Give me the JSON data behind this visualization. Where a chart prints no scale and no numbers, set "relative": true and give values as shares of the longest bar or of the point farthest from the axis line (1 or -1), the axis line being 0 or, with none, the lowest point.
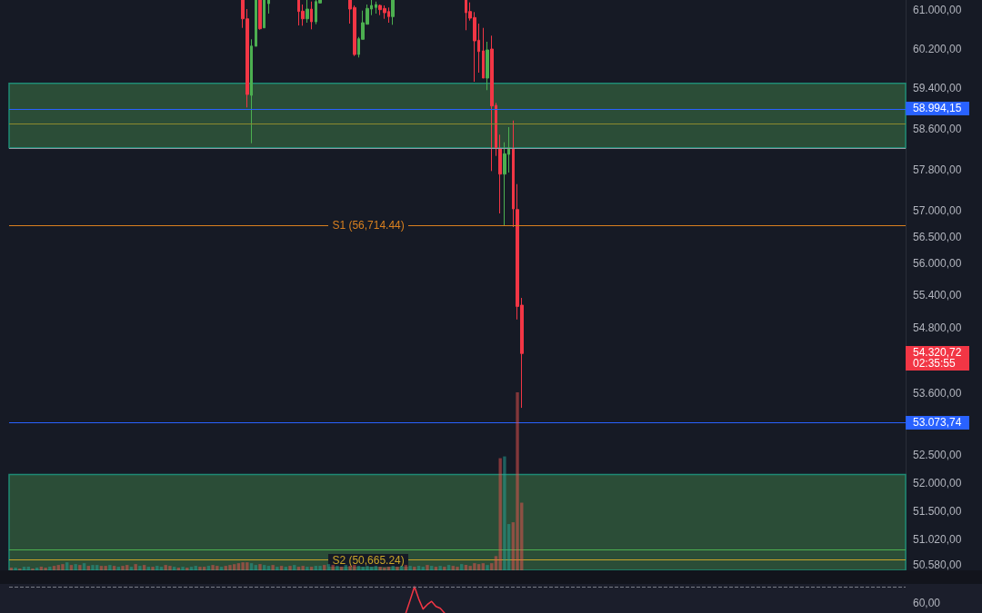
{
  "chart_data": [
    {
      "type": "candlestick",
      "tick_labels": "y",
      "log": true,
      "categories": [
        null,
        null,
        null,
        null,
        null,
        null,
        null,
        null,
        null,
        null,
        null,
        null,
        null,
        null,
        null,
        null,
        null,
        null,
        null,
        null,
        null,
        null,
        null,
        null,
        null,
        null,
        null,
        null,
        null,
        null,
        null,
        null,
        null,
        null,
        null,
        null,
        null,
        null,
        null,
        null,
        null,
        null,
        null,
        null,
        null,
        null,
        null,
        null,
        null,
        null,
        null,
        null,
        null,
        null,
        null,
        null,
        null,
        null,
        null,
        null,
        null,
        null,
        null,
        null,
        null,
        null,
        null,
        null,
        null,
        null,
        null,
        null,
        null,
        null,
        null,
        null,
        null,
        null,
        null,
        null,
        null,
        null,
        null,
        null,
        null,
        null,
        null,
        null,
        null,
        null,
        null,
        null,
        null,
        null,
        null,
        null,
        null,
        null,
        null,
        null,
        null,
        null,
        null,
        null,
        null,
        null,
        null,
        null,
        null,
        null,
        null,
        null,
        null,
        null,
        null,
        null,
        null,
        null,
        null,
        null,
        null,
        null,
        null,
        null,
        null,
        null,
        null,
        null,
        null,
        null,
        null,
        null,
        null,
        null,
        null,
        null,
        null,
        null,
        null,
        null,
        null,
        null,
        null,
        null,
        null,
        null,
        null,
        null,
        null,
        null,
        null,
        null,
        null,
        null,
        null,
        null,
        null,
        null,
        null,
        null,
        null,
        null,
        null,
        null,
        null,
        null,
        null,
        null,
        null,
        null,
        null,
        null,
        null,
        null,
        null,
        null,
        null,
        null,
        null,
        null,
        null,
        null,
        null,
        null,
        null,
        null,
        null,
        null,
        null,
        null,
        null,
        null,
        null,
        null,
        null,
        null,
        null,
        null,
        null,
        null,
        null,
        null,
        null,
        null,
        null,
        null,
        null,
        null,
        null
      ],
      "ohlc": [
        null,
        null,
        null,
        null,
        null,
        null,
        null,
        null,
        null,
        null,
        null,
        null,
        null,
        null,
        null,
        null,
        null,
        null,
        null,
        null,
        null,
        null,
        null,
        null,
        null,
        null,
        null,
        null,
        null,
        null,
        null,
        null,
        null,
        null,
        null,
        null,
        null,
        null,
        null,
        null,
        null,
        null,
        null,
        null,
        null,
        null,
        null,
        null,
        null,
        null,
        null,
        null,
        null,
        null,
        [
          61200,
          61200,
          60627,
          60813
        ],
        [
          60813,
          61013,
          59022,
          59281
        ],
        [
          59263,
          60394,
          58314,
          60257
        ],
        [
          60252,
          61200,
          60252,
          61200
        ],
        [
          61200,
          61200,
          60590,
          60609
        ],
        [
          60627,
          61200,
          60627,
          61200
        ],
        [
          61125,
          61200,
          60920,
          61200
        ],
        null,
        null,
        null,
        null,
        null,
        null,
        [
          61200,
          61200,
          60677,
          60963
        ],
        [
          60970,
          61107,
          60671,
          60813
        ],
        [
          60813,
          61200,
          60733,
          61013
        ],
        [
          61013,
          61168,
          60597,
          60752
        ],
        [
          60752,
          61200,
          60702,
          61168
        ],
        [
          61138,
          61200,
          61138,
          61200
        ],
        null,
        null,
        null,
        null,
        null,
        null,
        [
          61200,
          61200,
          60714,
          61013
        ],
        [
          61045,
          61088,
          60054,
          60085
        ],
        [
          60085,
          60442,
          60025,
          60405
        ],
        [
          60394,
          60981,
          60394,
          60733
        ],
        [
          60702,
          61107,
          60702,
          61026
        ],
        [
          61013,
          61200,
          60888,
          61088
        ],
        [
          61045,
          61168,
          60920,
          61107
        ],
        [
          61088,
          61107,
          60888,
          61000
        ],
        [
          61026,
          61088,
          60813,
          60938
        ],
        [
          60963,
          61045,
          60733,
          60858
        ],
        [
          60858,
          61200,
          60690,
          61200
        ],
        null,
        null,
        null,
        null,
        null,
        null,
        null,
        null,
        null,
        null,
        null,
        null,
        null,
        null,
        null,
        null,
        [
          61200,
          61200,
          60579,
          60938
        ],
        [
          60963,
          61150,
          60776,
          60826
        ],
        [
          60839,
          60951,
          59536,
          60362
        ],
        [
          60375,
          60714,
          59718,
          60145
        ],
        [
          60159,
          60627,
          59609,
          59609
        ],
        [
          59609,
          60344,
          59367,
          60178
        ],
        [
          60196,
          60468,
          57769,
          59051
        ],
        [
          59064,
          59113,
          58064,
          58214
        ],
        [
          58214,
          58482,
          56949,
          57709
        ],
        [
          57709,
          58333,
          56718,
          58107
        ],
        [
          58094,
          58631,
          57739,
          58224
        ],
        [
          58214,
          58762,
          56688,
          57036
        ],
        [
          57024,
          57515,
          54948,
          55191
        ],
        [
          55214,
          55349,
          53334,
          54320.72
        ],
        null,
        null,
        null,
        null,
        null,
        null,
        null,
        null,
        null,
        null,
        null,
        null,
        null,
        null,
        null,
        null,
        null,
        null,
        null,
        null,
        null,
        null,
        null,
        null,
        null,
        null,
        null,
        null,
        null,
        null,
        null,
        null,
        null,
        null,
        null,
        null,
        null,
        null,
        null,
        null,
        null,
        null,
        null,
        null,
        null,
        null,
        null,
        null,
        null,
        null,
        null,
        null,
        null,
        null,
        null,
        null,
        null,
        null,
        null,
        null,
        null,
        null,
        null,
        null,
        null,
        null,
        null,
        null,
        null,
        null,
        null,
        null,
        null,
        null,
        null,
        null,
        null,
        null,
        null,
        null,
        null,
        null,
        null,
        null,
        null,
        null,
        null,
        null,
        null
      ],
      "colors": [
        null,
        null,
        null,
        null,
        null,
        null,
        null,
        null,
        null,
        null,
        null,
        null,
        null,
        null,
        null,
        null,
        null,
        null,
        null,
        null,
        null,
        null,
        null,
        null,
        null,
        null,
        null,
        null,
        null,
        null,
        null,
        null,
        null,
        null,
        null,
        null,
        null,
        null,
        null,
        null,
        null,
        null,
        null,
        null,
        null,
        null,
        null,
        null,
        null,
        null,
        null,
        null,
        null,
        null,
        "#f23645",
        "#f23645",
        "#4caf50",
        "#4caf50",
        "#f23645",
        "#4caf50",
        "#4caf50",
        null,
        null,
        null,
        null,
        null,
        null,
        "#f23645",
        "#f23645",
        "#4caf50",
        "#f23645",
        "#4caf50",
        "#4caf50",
        null,
        null,
        null,
        null,
        null,
        null,
        "#f23645",
        "#f23645",
        "#4caf50",
        "#4caf50",
        "#4caf50",
        "#4caf50",
        "#4caf50",
        "#f23645",
        "#f23645",
        "#f23645",
        "#4caf50",
        null,
        null,
        null,
        null,
        null,
        null,
        null,
        null,
        null,
        null,
        null,
        null,
        null,
        null,
        null,
        null,
        "#f23645",
        "#f23645",
        "#f23645",
        "#f23645",
        "#f23645",
        "#4caf50",
        "#f23645",
        "#f23645",
        "#f23645",
        "#4caf50",
        "#4caf50",
        "#f23645",
        "#f23645",
        "#f23645",
        null,
        null,
        null,
        null,
        null,
        null,
        null,
        null,
        null,
        null,
        null,
        null,
        null,
        null,
        null,
        null,
        null,
        null,
        null,
        null,
        null,
        null,
        null,
        null,
        null,
        null,
        null,
        null,
        null,
        null,
        null,
        null,
        null,
        null,
        null,
        null,
        null,
        null,
        null,
        null,
        null,
        null,
        null,
        null,
        null,
        null,
        null,
        null,
        null,
        null,
        null,
        null,
        null,
        null,
        null,
        null,
        null,
        null,
        null,
        null,
        null,
        null,
        null,
        null,
        null,
        null,
        null,
        null,
        null,
        null,
        null,
        null,
        null,
        null,
        null,
        null,
        null,
        null,
        null,
        null,
        null,
        null,
        null,
        null,
        null,
        null,
        null,
        null,
        null
      ],
      "value_labels": [
        null,
        null,
        null,
        null,
        null,
        null,
        null,
        null,
        null,
        null,
        null,
        null,
        null,
        null,
        null,
        null,
        null,
        null,
        null,
        null,
        null,
        null,
        null,
        null,
        null,
        null,
        null,
        null,
        null,
        null,
        null,
        null,
        null,
        null,
        null,
        null,
        null,
        null,
        null,
        null,
        null,
        null,
        null,
        null,
        null,
        null,
        null,
        null,
        null,
        null,
        null,
        null,
        null,
        null,
        null,
        null,
        null,
        null,
        null,
        null,
        null,
        null,
        null,
        null,
        null,
        null,
        null,
        null,
        null,
        null,
        null,
        null,
        null,
        null,
        null,
        null,
        null,
        null,
        null,
        null,
        null,
        null,
        null,
        null,
        null,
        null,
        null,
        null,
        null,
        null,
        null,
        null,
        null,
        null,
        null,
        null,
        null,
        null,
        null,
        null,
        null,
        null,
        null,
        null,
        null,
        null,
        null,
        null,
        null,
        null,
        null,
        null,
        null,
        null,
        null,
        null,
        null,
        null,
        null,
        "54.320,72",
        null,
        null,
        null,
        null,
        null,
        null,
        null,
        null,
        null,
        null,
        null,
        null,
        null,
        null,
        null,
        null,
        null,
        null,
        null,
        null,
        null,
        null,
        null,
        null,
        null,
        null,
        null,
        null,
        null,
        null,
        null,
        null,
        null,
        null,
        null,
        null,
        null,
        null,
        null,
        null,
        null,
        null,
        null,
        null,
        null,
        null,
        null,
        null,
        null,
        null,
        null,
        null,
        null,
        null,
        null,
        null,
        null,
        null,
        null,
        null,
        null,
        null,
        null,
        null,
        null,
        null,
        null,
        null,
        null,
        null,
        null,
        null,
        null,
        null,
        null,
        null,
        null,
        null,
        null,
        null,
        null,
        null,
        null,
        null,
        null,
        null,
        null,
        null,
        null
      ],
      "ylim": [
        50490,
        61200
      ],
      "yticks": [
        {
          "value": 61000,
          "label": "61.000,00"
        },
        {
          "value": 60200,
          "label": "60.200,00"
        },
        {
          "value": 59400,
          "label": "59.400,00"
        },
        {
          "value": 58600,
          "label": "58.600,00"
        },
        {
          "value": 57800,
          "label": "57.800,00"
        },
        {
          "value": 57000,
          "label": "57.000,00"
        },
        {
          "value": 56500,
          "label": "56.500,00"
        },
        {
          "value": 56000,
          "label": "56.000,00"
        },
        {
          "value": 55400,
          "label": "55.400,00"
        },
        {
          "value": 54800,
          "label": "54.800,00"
        },
        {
          "value": 53600,
          "label": "53.600,00"
        },
        {
          "value": 52500,
          "label": "52.500,00"
        },
        {
          "value": 52000,
          "label": "52.000,00"
        },
        {
          "value": 51500,
          "label": "51.500,00"
        },
        {
          "value": 51020,
          "label": "51.020,00"
        },
        {
          "value": 50580,
          "label": "50.580,00"
        }
      ],
      "bands": [
        {
          "axis": "y",
          "from": 58225,
          "to": 59505,
          "color": "#2b4d37"
        },
        {
          "axis": "y",
          "from": 50490,
          "to": 52150,
          "color": "#2b4d37"
        }
      ],
      "ref_lines": [
        {
          "axis": "y",
          "value": 58994.15,
          "label": "58.994,15",
          "color": "#2962ff"
        },
        {
          "axis": "y",
          "value": 53073.74,
          "label": "53.073,74",
          "color": "#2962ff"
        },
        {
          "axis": "y",
          "value": 56714.44,
          "color": "#d9801f"
        },
        {
          "axis": "y",
          "value": 50665.24,
          "color": "#c8a52a"
        },
        {
          "axis": "y",
          "value": 58690,
          "color": "#8c8a2e"
        },
        {
          "axis": "y",
          "value": 58210,
          "color": "#9598a1"
        },
        {
          "axis": "y",
          "value": 50845,
          "color": "#4caf50"
        }
      ],
      "annotations": [
        {
          "text": "S1 (56,714.44)",
          "y": 56714.44
        },
        {
          "text": "S2 (50,665.24)",
          "y": 50665.24
        },
        "02:35:55"
      ]
    },
    {
      "type": "bar",
      "relative": true,
      "tick_labels": false,
      "categories": [
        null,
        null,
        null,
        null,
        null,
        null,
        null,
        null,
        null,
        null,
        null,
        null,
        null,
        null,
        null,
        null,
        null,
        null,
        null,
        null,
        null,
        null,
        null,
        null,
        null,
        null,
        null,
        null,
        null,
        null,
        null,
        null,
        null,
        null,
        null,
        null,
        null,
        null,
        null,
        null,
        null,
        null,
        null,
        null,
        null,
        null,
        null,
        null,
        null,
        null,
        null,
        null,
        null,
        null,
        null,
        null,
        null,
        null,
        null,
        null,
        null,
        null,
        null,
        null,
        null,
        null,
        null,
        null,
        null,
        null,
        null,
        null,
        null,
        null,
        null,
        null,
        null,
        null,
        null,
        null,
        null,
        null,
        null,
        null,
        null,
        null,
        null,
        null,
        null,
        null,
        null,
        null,
        null,
        null,
        null,
        null,
        null,
        null,
        null,
        null,
        null,
        null,
        null,
        null,
        null,
        null,
        null,
        null,
        null,
        null,
        null,
        null,
        null,
        null,
        null,
        null,
        null,
        null,
        null,
        null,
        null,
        null,
        null,
        null,
        null,
        null,
        null,
        null,
        null,
        null,
        null,
        null,
        null,
        null,
        null,
        null,
        null,
        null,
        null,
        null,
        null,
        null,
        null,
        null,
        null,
        null,
        null,
        null,
        null,
        null,
        null,
        null,
        null,
        null,
        null,
        null,
        null,
        null,
        null,
        null,
        null,
        null,
        null,
        null,
        null,
        null,
        null,
        null,
        null,
        null,
        null,
        null,
        null,
        null,
        null,
        null,
        null,
        null,
        null,
        null,
        null,
        null,
        null,
        null,
        null,
        null,
        null,
        null,
        null,
        null,
        null,
        null,
        null,
        null,
        null,
        null,
        null,
        null,
        null,
        null,
        null,
        null,
        null,
        null,
        null,
        null,
        null,
        null,
        null
      ],
      "values": [
        0.015,
        0.015,
        0.01,
        0.02,
        0.02,
        0.01,
        0.015,
        0.02,
        0.015,
        0.02,
        0.025,
        0.03,
        0.035,
        0.045,
        0.03,
        0.035,
        0.03,
        0.04,
        0.025,
        0.03,
        0.03,
        0.025,
        0.025,
        0.03,
        0.025,
        0.02,
        0.025,
        0.03,
        0.02,
        0.035,
        0.025,
        0.03,
        0.02,
        0.02,
        0.025,
        0.02,
        0.03,
        0.025,
        0.02,
        0.015,
        0.02,
        0.015,
        0.02,
        0.025,
        0.02,
        0.02,
        0.025,
        0.03,
        0.025,
        0.02,
        0.025,
        0.03,
        0.035,
        0.04,
        0.045,
        0.045,
        0.04,
        0.03,
        0.035,
        0.03,
        0.025,
        0.03,
        0.02,
        0.025,
        0.02,
        0.025,
        0.03,
        0.02,
        0.025,
        0.02,
        0.02,
        0.025,
        0.025,
        0.03,
        0.035,
        0.03,
        0.025,
        0.02,
        0.03,
        0.025,
        0.03,
        0.025,
        0.02,
        0.025,
        0.02,
        0.025,
        0.02,
        0.015,
        0.02,
        0.025,
        0.02,
        0.025,
        0.03,
        0.025,
        0.02,
        0.025,
        0.02,
        0.03,
        0.025,
        0.02,
        0.025,
        0.02,
        0.03,
        0.025,
        0.02,
        0.035,
        0.03,
        0.025,
        0.04,
        0.035,
        0.04,
        0.03,
        0.04,
        0.08,
        0.63,
        0.64,
        0.26,
        0.27,
        1,
        0.38,
        null,
        null,
        null,
        null,
        null,
        null,
        null,
        null,
        null,
        null,
        null,
        null,
        null,
        null,
        null,
        null,
        null,
        null,
        null,
        null,
        null,
        null,
        null,
        null,
        null,
        null,
        null,
        null,
        null,
        null,
        null,
        null,
        null,
        null,
        null,
        null,
        null,
        null,
        null,
        null,
        null,
        null,
        null,
        null,
        null,
        null,
        null,
        null,
        null,
        null,
        null,
        null,
        null,
        null,
        null,
        null,
        null,
        null,
        null,
        null,
        null,
        null,
        null,
        null,
        null,
        null,
        null,
        null,
        null,
        null,
        null,
        null,
        null,
        null,
        null,
        null,
        null,
        null,
        null,
        null,
        null,
        null,
        null,
        null,
        null,
        null,
        null,
        null,
        null
      ],
      "colors": [
        "#ef5350",
        "#26a69a",
        "#ef5350",
        "#26a69a",
        "#26a69a",
        "#ef5350",
        "#26a69a",
        "#ef5350",
        "#ef5350",
        "#26a69a",
        "#ef5350",
        "#ef5350",
        "#ef5350",
        "#26a69a",
        "#ef5350",
        "#26a69a",
        "#ef5350",
        "#26a69a",
        "#ef5350",
        "#26a69a",
        "#26a69a",
        "#ef5350",
        "#ef5350",
        "#26a69a",
        "#ef5350",
        "#26a69a",
        "#ef5350",
        "#ef5350",
        "#26a69a",
        "#ef5350",
        "#26a69a",
        "#ef5350",
        "#26a69a",
        "#ef5350",
        "#26a69a",
        "#26a69a",
        "#ef5350",
        "#ef5350",
        "#26a69a",
        "#ef5350",
        "#26a69a",
        "#ef5350",
        "#26a69a",
        "#26a69a",
        "#ef5350",
        "#ef5350",
        "#26a69a",
        "#ef5350",
        "#ef5350",
        "#26a69a",
        "#ef5350",
        "#ef5350",
        "#ef5350",
        "#ef5350",
        "#ef5350",
        "#ef5350",
        "#26a69a",
        "#26a69a",
        "#ef5350",
        "#26a69a",
        "#26a69a",
        "#ef5350",
        "#26a69a",
        "#ef5350",
        "#26a69a",
        "#ef5350",
        "#26a69a",
        "#ef5350",
        "#ef5350",
        "#26a69a",
        "#ef5350",
        "#26a69a",
        "#26a69a",
        "#ef5350",
        "#26a69a",
        "#ef5350",
        "#26a69a",
        "#ef5350",
        "#26a69a",
        "#ef5350",
        "#ef5350",
        "#26a69a",
        "#26a69a",
        "#26a69a",
        "#26a69a",
        "#26a69a",
        "#ef5350",
        "#ef5350",
        "#ef5350",
        "#26a69a",
        "#ef5350",
        "#26a69a",
        "#ef5350",
        "#26a69a",
        "#ef5350",
        "#26a69a",
        "#26a69a",
        "#ef5350",
        "#26a69a",
        "#ef5350",
        "#26a69a",
        "#ef5350",
        "#26a69a",
        "#ef5350",
        "#ef5350",
        "#26a69a",
        "#ef5350",
        "#ef5350",
        "#ef5350",
        "#ef5350",
        "#ef5350",
        "#26a69a",
        "#ef5350",
        "#ef5350",
        "#ef5350",
        "#26a69a",
        "#26a69a",
        "#ef5350",
        "#ef5350",
        "#ef5350",
        null,
        null,
        null,
        null,
        null,
        null,
        null,
        null,
        null,
        null,
        null,
        null,
        null,
        null,
        null,
        null,
        null,
        null,
        null,
        null,
        null,
        null,
        null,
        null,
        null,
        null,
        null,
        null,
        null,
        null,
        null,
        null,
        null,
        null,
        null,
        null,
        null,
        null,
        null,
        null,
        null,
        null,
        null,
        null,
        null,
        null,
        null,
        null,
        null,
        null,
        null,
        null,
        null,
        null,
        null,
        null,
        null,
        null,
        null,
        null,
        null,
        null,
        null,
        null,
        null,
        null,
        null,
        null,
        null,
        null,
        null,
        null,
        null,
        null,
        null,
        null,
        null,
        null,
        null,
        null,
        null,
        null,
        null,
        null,
        null,
        null,
        null,
        null,
        null
      ]
    },
    {
      "type": "line",
      "relative": true,
      "tick_labels": false,
      "marker": "none",
      "color": "#f23645",
      "categories": [
        null,
        null,
        null,
        null,
        null,
        null,
        null,
        null,
        null,
        null,
        null,
        null,
        null,
        null,
        null,
        null,
        null,
        null,
        null,
        null,
        null,
        null,
        null,
        null,
        null,
        null,
        null,
        null,
        null,
        null,
        null,
        null,
        null,
        null,
        null,
        null,
        null,
        null,
        null,
        null,
        null,
        null,
        null,
        null,
        null,
        null,
        null,
        null,
        null,
        null,
        null,
        null,
        null,
        null,
        null,
        null,
        null,
        null,
        null,
        null,
        null,
        null,
        null,
        null,
        null,
        null,
        null,
        null,
        null,
        null,
        null,
        null,
        null,
        null,
        null,
        null,
        null,
        null,
        null,
        null,
        null,
        null,
        null,
        null,
        null,
        null,
        null,
        null,
        null,
        null,
        null,
        null,
        null,
        null,
        null,
        null,
        null,
        null,
        null,
        null,
        null,
        null,
        null,
        null,
        null,
        null,
        null,
        null,
        null,
        null,
        null,
        null,
        null,
        null,
        null,
        null,
        null,
        null,
        null,
        null,
        null,
        null,
        null,
        null,
        null,
        null,
        null,
        null,
        null,
        null,
        null,
        null,
        null,
        null,
        null,
        null,
        null,
        null,
        null,
        null,
        null,
        null,
        null,
        null,
        null,
        null,
        null,
        null,
        null,
        null,
        null,
        null,
        null,
        null,
        null,
        null,
        null,
        null,
        null,
        null,
        null,
        null,
        null,
        null,
        null,
        null,
        null,
        null,
        null,
        null,
        null,
        null,
        null,
        null,
        null,
        null,
        null,
        null,
        null,
        null,
        null,
        null,
        null,
        null,
        null,
        null,
        null,
        null,
        null,
        null,
        null,
        null,
        null,
        null,
        null,
        null,
        null,
        null,
        null,
        null,
        null,
        null,
        null,
        null,
        null,
        null,
        null,
        null,
        null
      ],
      "values": [
        null,
        null,
        null,
        null,
        null,
        null,
        null,
        null,
        null,
        null,
        null,
        null,
        null,
        null,
        null,
        null,
        null,
        null,
        null,
        null,
        null,
        null,
        null,
        null,
        null,
        null,
        null,
        null,
        null,
        null,
        null,
        null,
        null,
        null,
        null,
        null,
        null,
        null,
        null,
        null,
        null,
        null,
        null,
        null,
        null,
        null,
        null,
        null,
        null,
        null,
        null,
        null,
        null,
        null,
        null,
        null,
        null,
        null,
        null,
        null,
        null,
        null,
        null,
        null,
        null,
        null,
        null,
        null,
        null,
        null,
        null,
        null,
        null,
        null,
        null,
        null,
        null,
        null,
        null,
        null,
        null,
        null,
        null,
        null,
        null,
        null,
        null,
        null,
        null,
        null,
        null,
        null,
        0,
        0.49,
        1,
        0.53,
        0.15,
        0.32,
        0.44,
        0.25,
        0.18,
        0,
        null,
        null,
        null,
        null,
        null,
        null,
        null,
        null,
        null,
        null,
        null,
        null,
        null,
        null,
        null,
        null,
        null,
        null,
        null,
        null,
        null,
        null,
        null,
        null,
        null,
        null,
        null,
        null,
        null,
        null,
        null,
        null,
        null,
        null,
        null,
        null,
        null,
        null,
        null,
        null,
        null,
        null,
        null,
        null,
        null,
        null,
        null,
        null,
        null,
        null,
        null,
        null,
        null,
        null,
        null,
        null,
        null,
        null,
        null,
        null,
        null,
        null,
        null,
        null,
        null,
        null,
        null,
        null,
        null,
        null,
        null,
        null,
        null,
        null,
        null,
        null,
        null,
        null,
        null,
        null,
        null,
        null,
        null,
        null,
        null,
        null,
        null,
        null,
        null,
        null,
        null,
        null,
        null,
        null,
        null,
        null,
        null,
        null,
        null,
        null,
        null,
        null,
        null,
        null,
        null,
        null,
        null
      ],
      "ref_lines": [
        {
          "axis": "y",
          "value": 0.99,
          "color": "#787b86",
          "line_style": "dashed"
        }
      ],
      "annotations": [
        "60,00"
      ]
    }
  ]
}
